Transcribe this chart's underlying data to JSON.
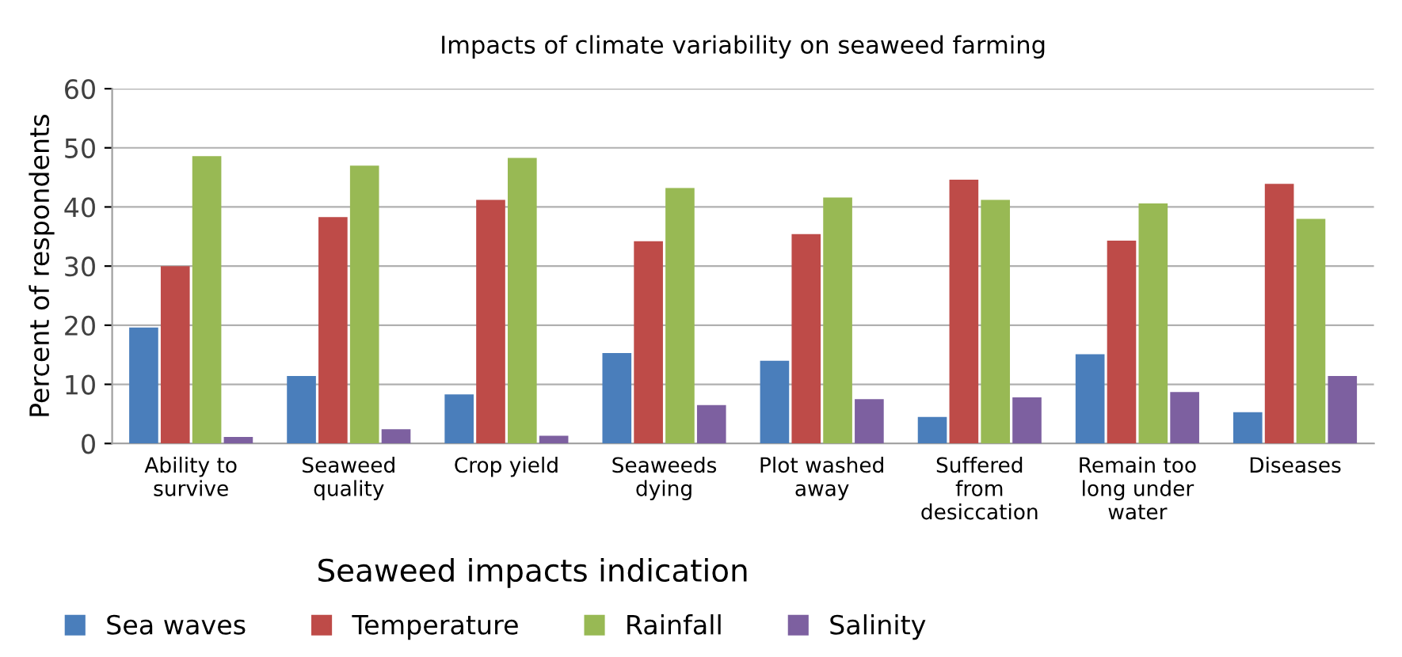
{
  "chart_data": {
    "type": "bar",
    "title": "Impacts of climate variability on seaweed farming",
    "xlabel": "Seaweed impacts indication",
    "ylabel": "Percent of respondents",
    "categories": [
      "Ability to\nsurvive",
      "Seaweed\nquality",
      "Crop yield",
      "Seaweeds\ndying",
      "Plot washed\naway",
      "Suffered\nfrom\ndesiccation",
      "Remain too\nlong under\nwater",
      "Diseases"
    ],
    "series": [
      {
        "name": "Sea waves",
        "color": "#4a7ebb",
        "values": [
          19.6,
          11.4,
          8.3,
          15.3,
          14,
          4.5,
          15.1,
          5.3
        ]
      },
      {
        "name": "Temperature",
        "color": "#be4b48",
        "values": [
          30,
          38.3,
          41.2,
          34.2,
          35.4,
          44.6,
          34.3,
          43.9
        ]
      },
      {
        "name": "Rainfall",
        "color": "#98b954",
        "values": [
          48.6,
          47,
          48.3,
          43.2,
          41.6,
          41.2,
          40.6,
          38
        ]
      },
      {
        "name": "Salinity",
        "color": "#7d60a0",
        "values": [
          1.1,
          2.4,
          1.3,
          6.5,
          7.5,
          7.8,
          8.7,
          11.4
        ]
      }
    ],
    "ylim": [
      0,
      60
    ],
    "yticks": [
      0,
      10,
      20,
      30,
      40,
      50,
      60
    ],
    "grid": "y",
    "legend": "bottom left"
  }
}
